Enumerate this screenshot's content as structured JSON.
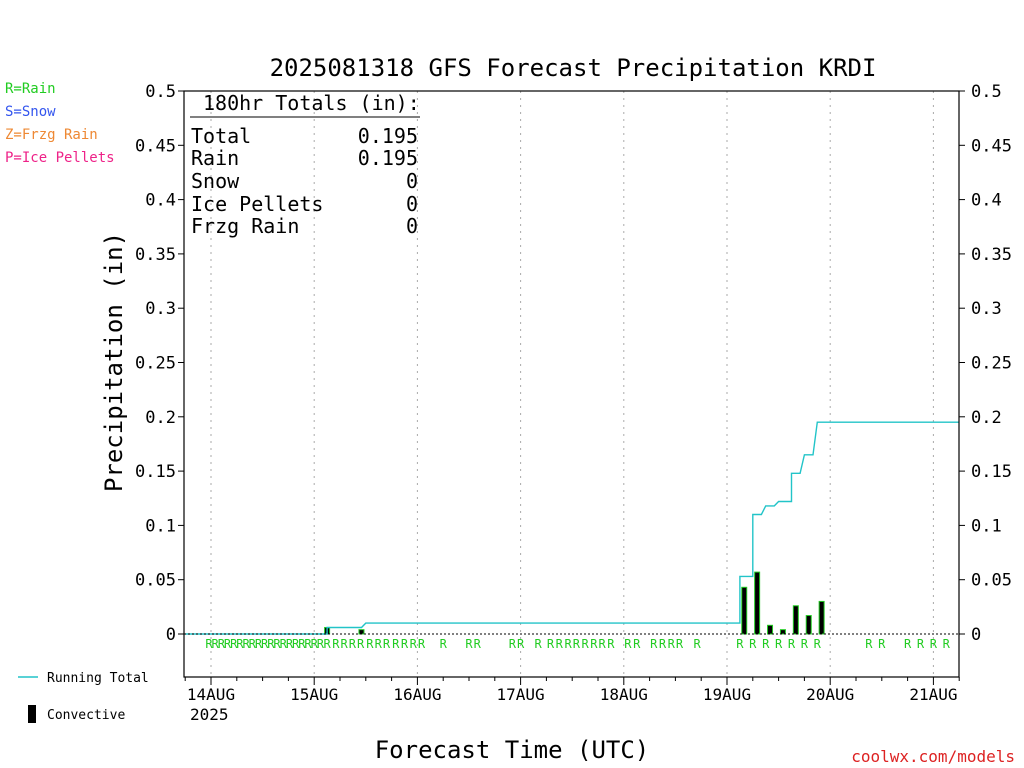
{
  "chart_data": {
    "type": "bar",
    "title": "2025081318 GFS Forecast Precipitation KRDI",
    "ylabel": "Precipitation (in)",
    "xlabel": "Forecast Time (UTC)",
    "ylim": [
      0,
      0.5
    ],
    "yticks": [
      "0",
      "0.05",
      "0.1",
      "0.15",
      "0.2",
      "0.25",
      "0.3",
      "0.35",
      "0.4",
      "0.45",
      "0.5"
    ],
    "xtick_labels": [
      "14AUG",
      "15AUG",
      "16AUG",
      "17AUG",
      "18AUG",
      "19AUG",
      "20AUG",
      "21AUG"
    ],
    "year_label": "2025",
    "x_range_days": [
      13.75,
      21.25
    ],
    "grid": true,
    "precip_type_legend": [
      {
        "text": "R=Rain",
        "color": "#22cc22"
      },
      {
        "text": "S=Snow",
        "color": "#3355ee"
      },
      {
        "text": "Z=Frzg Rain",
        "color": "#ee8833"
      },
      {
        "text": "P=Ice Pellets",
        "color": "#ee2288"
      }
    ],
    "series_legend": {
      "running_total": "Running Total",
      "convective": "Convective"
    },
    "totals_box": {
      "heading": "180hr Totals (in):",
      "rows": [
        {
          "label": "Total",
          "value": "0.195"
        },
        {
          "label": "Rain",
          "value": "0.195"
        },
        {
          "label": "Snow",
          "value": "0"
        },
        {
          "label": "Ice Pellets",
          "value": "0"
        },
        {
          "label": "Frzg Rain",
          "value": "0"
        }
      ]
    },
    "running_total": [
      [
        13.75,
        0
      ],
      [
        15.125,
        0
      ],
      [
        15.125,
        0.006
      ],
      [
        15.458,
        0.006
      ],
      [
        15.5,
        0.01
      ],
      [
        19.125,
        0.01
      ],
      [
        19.125,
        0.053
      ],
      [
        19.25,
        0.053
      ],
      [
        19.25,
        0.11
      ],
      [
        19.333,
        0.11
      ],
      [
        19.375,
        0.118
      ],
      [
        19.458,
        0.118
      ],
      [
        19.5,
        0.122
      ],
      [
        19.625,
        0.122
      ],
      [
        19.625,
        0.148
      ],
      [
        19.708,
        0.148
      ],
      [
        19.75,
        0.165
      ],
      [
        19.833,
        0.165
      ],
      [
        19.875,
        0.195
      ],
      [
        21.25,
        0.195
      ]
    ],
    "period_bars": [
      {
        "x": 15.125,
        "value": 0.006
      },
      {
        "x": 15.458,
        "value": 0.004
      },
      {
        "x": 19.167,
        "value": 0.043
      },
      {
        "x": 19.292,
        "value": 0.057
      },
      {
        "x": 19.417,
        "value": 0.008
      },
      {
        "x": 19.542,
        "value": 0.004
      },
      {
        "x": 19.667,
        "value": 0.026
      },
      {
        "x": 19.792,
        "value": 0.017
      },
      {
        "x": 19.917,
        "value": 0.03
      }
    ],
    "type_marker_text": "R",
    "type_markers_x": [
      13.98,
      14.04,
      14.1,
      14.16,
      14.22,
      14.28,
      14.34,
      14.4,
      14.46,
      14.52,
      14.58,
      14.64,
      14.7,
      14.76,
      14.82,
      14.88,
      14.94,
      15.0,
      15.06,
      15.125,
      15.21,
      15.29,
      15.37,
      15.45,
      15.54,
      15.62,
      15.7,
      15.79,
      15.875,
      15.96,
      16.04,
      16.25,
      16.5,
      16.58,
      16.92,
      17.0,
      17.17,
      17.29,
      17.375,
      17.46,
      17.54,
      17.625,
      17.71,
      17.79,
      17.875,
      18.04,
      18.125,
      18.29,
      18.375,
      18.46,
      18.54,
      18.71,
      19.125,
      19.25,
      19.375,
      19.5,
      19.625,
      19.75,
      19.875,
      20.375,
      20.5,
      20.75,
      20.875,
      21.0,
      21.125
    ],
    "colors": {
      "running_total": "#22c4c8",
      "bar_fill": "#000000",
      "bar_edge": "#22cc22",
      "marker": "#22cc22",
      "watermark": "#dd2222"
    }
  },
  "watermark": "coolwx.com/models"
}
